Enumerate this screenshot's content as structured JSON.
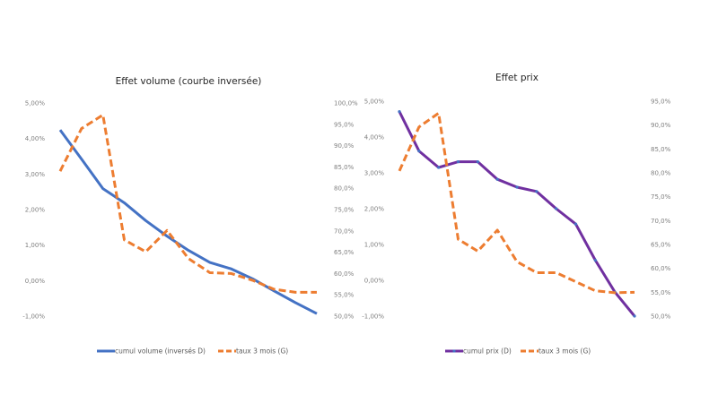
{
  "colors": {
    "volume": "#4472C4",
    "prix": "#7030A0",
    "taux": "#ED7D31",
    "marker": "#4472C4"
  },
  "chart_data": [
    {
      "type": "line",
      "title": "Effet volume (courbe inversée)",
      "x": [
        1,
        2,
        3,
        4,
        5,
        6,
        7,
        8,
        9,
        10,
        11,
        12,
        13
      ],
      "y_left": {
        "range": [
          -1,
          5
        ],
        "ticks": [
          "5,00%",
          "4,00%",
          "3,00%",
          "2,00%",
          "1,00%",
          "0,00%",
          "-1,00%"
        ]
      },
      "y_right": {
        "range": [
          50,
          100
        ],
        "ticks": [
          "100,0%",
          "95,0%",
          "90,0%",
          "85,0%",
          "80,0%",
          "75,0%",
          "70,0%",
          "65,0%",
          "60,0%",
          "55,0%",
          "50,0%"
        ]
      },
      "series": [
        {
          "name": "cumul volume (inversés D)",
          "axis": "left",
          "style": "solid",
          "color_key": "volume",
          "values": [
            4.24,
            3.42,
            2.59,
            2.19,
            1.69,
            1.25,
            0.85,
            0.51,
            0.33,
            0.05,
            -0.29,
            -0.62,
            -0.93
          ]
        },
        {
          "name": "taux 3 mois (G)",
          "axis": "right",
          "style": "dashed",
          "color_key": "taux",
          "values": [
            84.0,
            94.0,
            97.2,
            67.9,
            65.1,
            70.1,
            63.5,
            60.2,
            60.0,
            58.4,
            56.3,
            55.6,
            55.6
          ]
        }
      ],
      "legend": "bottom"
    },
    {
      "type": "line",
      "title": "Effet prix",
      "x": [
        1,
        2,
        3,
        4,
        5,
        6,
        7,
        8,
        9,
        10,
        11,
        12,
        13
      ],
      "y_left": {
        "range": [
          -1,
          5
        ],
        "ticks": [
          "5,00%",
          "4,00%",
          "3,00%",
          "2,00%",
          "1,00%",
          "0,00%",
          "-1,00%"
        ]
      },
      "y_right": {
        "range": [
          50,
          95
        ],
        "ticks": [
          "95,0%",
          "90,0%",
          "85,0%",
          "80,0%",
          "75,0%",
          "70,0%",
          "65,0%",
          "60,0%",
          "55,0%",
          "50,0%"
        ]
      },
      "series": [
        {
          "name": "cumul prix (D)",
          "axis": "left",
          "style": "solid-marker",
          "color_key": "prix",
          "values": [
            4.71,
            3.61,
            3.15,
            3.31,
            3.31,
            2.82,
            2.6,
            2.48,
            2.0,
            1.57,
            0.56,
            -0.33,
            -1.0
          ]
        },
        {
          "name": "taux 3 mois (G)",
          "axis": "right",
          "style": "dashed",
          "color_key": "taux",
          "values": [
            80.4,
            89.6,
            92.5,
            66.1,
            63.6,
            68.0,
            61.4,
            59.1,
            59.1,
            57.2,
            55.3,
            54.9,
            55.0
          ]
        }
      ],
      "legend": "bottom"
    }
  ]
}
